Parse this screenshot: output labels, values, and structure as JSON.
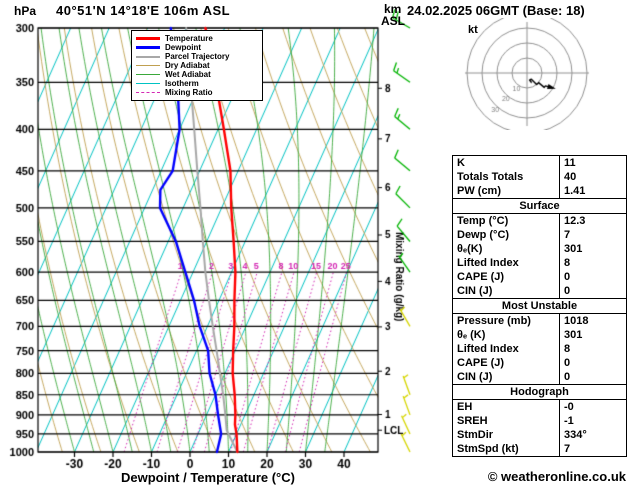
{
  "header": {
    "pressure_unit": "hPa",
    "station_title": "40°51'N 14°18'E 106m ASL",
    "datetime_title": "24.02.2025 06GMT (Base: 18)",
    "height_axis_label_km": "km",
    "height_axis_label_asl": "ASL"
  },
  "footer": {
    "xaxis_label": "Dewpoint / Temperature (°C)",
    "copyright": "© weatheronline.co.uk"
  },
  "legend": {
    "items": [
      {
        "label": "Temperature",
        "color": "#ff0000",
        "width": 3,
        "dash": false
      },
      {
        "label": "Dewpoint",
        "color": "#0000ff",
        "width": 3,
        "dash": false
      },
      {
        "label": "Parcel Trajectory",
        "color": "#a8a8a8",
        "width": 2,
        "dash": false
      },
      {
        "label": "Dry Adiabat",
        "color": "#c0a050",
        "width": 1,
        "dash": false
      },
      {
        "label": "Wet Adiabat",
        "color": "#3aa83a",
        "width": 1,
        "dash": false
      },
      {
        "label": "Isotherm",
        "color": "#00c3c3",
        "width": 1,
        "dash": false
      },
      {
        "label": "Mixing Ratio",
        "color": "#d428b4",
        "width": 1,
        "dash": true
      }
    ]
  },
  "hodograph": {
    "unit_label": "kt",
    "ring_step_kt": 10,
    "ring_labels": [
      10,
      20,
      30
    ],
    "trace_uv": [
      [
        3.1,
        -6.3
      ],
      [
        3.0,
        -6.3
      ],
      [
        1.7,
        -4.7
      ],
      [
        1.7,
        -4.7
      ],
      [
        2.5,
        -4.3
      ],
      [
        2.9,
        -4.1
      ],
      [
        6.4,
        -7.7
      ],
      [
        7.1,
        -7.1
      ],
      [
        7.7,
        -6.4
      ],
      [
        11.5,
        -9.6
      ],
      [
        12.3,
        -8.6
      ],
      [
        17.3,
        -10.0
      ]
    ]
  },
  "panel": {
    "sections": [
      {
        "rows": [
          [
            "K",
            "11"
          ],
          [
            "Totals Totals",
            "40"
          ],
          [
            "PW (cm)",
            "1.41"
          ]
        ]
      },
      {
        "title": "Surface",
        "rows": [
          [
            "Temp (°C)",
            "12.3"
          ],
          [
            "Dewp (°C)",
            "7"
          ],
          [
            "θₑ(K)",
            "301"
          ],
          [
            "Lifted Index",
            "8"
          ],
          [
            "CAPE (J)",
            "0"
          ],
          [
            "CIN (J)",
            "0"
          ]
        ]
      },
      {
        "title": "Most Unstable",
        "rows": [
          [
            "Pressure (mb)",
            "1018"
          ],
          [
            "θₑ (K)",
            "301"
          ],
          [
            "Lifted Index",
            "8"
          ],
          [
            "CAPE (J)",
            "0"
          ],
          [
            "CIN (J)",
            "0"
          ]
        ]
      },
      {
        "title": "Hodograph",
        "rows": [
          [
            "EH",
            "-0"
          ],
          [
            "SREH",
            "-1"
          ],
          [
            "StmDir",
            "334°"
          ],
          [
            "StmSpd (kt)",
            "7"
          ]
        ]
      }
    ]
  },
  "chart_data": {
    "type": "line",
    "subtype": "skewt_log_p_sounding",
    "pressure_ticks": [
      300,
      350,
      400,
      450,
      500,
      550,
      600,
      650,
      700,
      750,
      800,
      850,
      900,
      950,
      1000
    ],
    "temp_ticks": [
      -30,
      -20,
      -10,
      0,
      10,
      20,
      30,
      40
    ],
    "isotherm_step_c": 10,
    "dry_adiabat_step_k": 10,
    "wet_adiabat_start_temps_c": [
      -30,
      -25,
      -20,
      -15,
      -10,
      -5,
      0,
      5,
      10,
      15,
      20,
      25,
      30,
      35
    ],
    "mixing_ratio_lines_gkg": [
      1,
      2,
      3,
      4,
      5,
      8,
      10,
      15,
      20,
      25
    ],
    "mixing_ratio_axis_label": "Mixing Ratio (g/kg)",
    "km_ticks": [
      {
        "km": 1,
        "p": 899
      },
      {
        "km": 2,
        "p": 795
      },
      {
        "km": 3,
        "p": 701
      },
      {
        "km": 4,
        "p": 616
      },
      {
        "km": 5,
        "p": 540
      },
      {
        "km": 6,
        "p": 472
      },
      {
        "km": 7,
        "p": 411
      },
      {
        "km": 8,
        "p": 356
      }
    ],
    "lcl": {
      "label": "LCL",
      "p": 940
    },
    "temperature_profile": [
      [
        1000,
        12.3
      ],
      [
        950,
        10
      ],
      [
        925,
        8.5
      ],
      [
        900,
        7.5
      ],
      [
        850,
        5
      ],
      [
        800,
        2
      ],
      [
        750,
        -0.5
      ],
      [
        700,
        -3
      ],
      [
        650,
        -6
      ],
      [
        600,
        -9
      ],
      [
        550,
        -13
      ],
      [
        500,
        -17.5
      ],
      [
        450,
        -22
      ],
      [
        400,
        -28.5
      ],
      [
        350,
        -36
      ],
      [
        300,
        -45
      ]
    ],
    "dewpoint_profile": [
      [
        1000,
        7
      ],
      [
        950,
        6
      ],
      [
        900,
        3
      ],
      [
        850,
        0
      ],
      [
        800,
        -4
      ],
      [
        750,
        -7
      ],
      [
        700,
        -12
      ],
      [
        650,
        -16.5
      ],
      [
        600,
        -22
      ],
      [
        550,
        -28
      ],
      [
        500,
        -36
      ],
      [
        475,
        -38
      ],
      [
        450,
        -37
      ],
      [
        400,
        -40
      ],
      [
        350,
        -46
      ],
      [
        300,
        -54
      ]
    ],
    "parcel_profile": [
      [
        1000,
        12.3
      ],
      [
        940,
        7
      ],
      [
        900,
        4.9
      ],
      [
        850,
        2
      ],
      [
        800,
        -1.3
      ],
      [
        750,
        -4.8
      ],
      [
        700,
        -8.6
      ],
      [
        650,
        -12.6
      ],
      [
        600,
        -16.8
      ],
      [
        550,
        -21
      ],
      [
        500,
        -25.5
      ],
      [
        450,
        -30.6
      ],
      [
        400,
        -36.2
      ],
      [
        350,
        -42.6
      ],
      [
        300,
        -50
      ]
    ],
    "winds": [
      {
        "p": 300,
        "dir": 300,
        "spd": 20
      },
      {
        "p": 350,
        "dir": 305,
        "spd": 15
      },
      {
        "p": 400,
        "dir": 310,
        "spd": 15
      },
      {
        "p": 450,
        "dir": 310,
        "spd": 10
      },
      {
        "p": 500,
        "dir": 315,
        "spd": 10
      },
      {
        "p": 550,
        "dir": 320,
        "spd": 10
      },
      {
        "p": 600,
        "dir": 325,
        "spd": 5
      },
      {
        "p": 700,
        "dir": 330,
        "spd": 5
      },
      {
        "p": 850,
        "dir": 340,
        "spd": 5
      },
      {
        "p": 900,
        "dir": 340,
        "spd": 5
      },
      {
        "p": 950,
        "dir": 335,
        "spd": 7
      },
      {
        "p": 1000,
        "dir": 334,
        "spd": 7
      }
    ],
    "colors": {
      "temperature": "#ff0000",
      "dewpoint": "#0000ff",
      "parcel": "#a8a8a8",
      "dry_adiabat": "#c0a050",
      "wet_adiabat": "#3aa83a",
      "isotherm": "#00c3c3",
      "mixing_ratio": "#d428b4",
      "wind_barb_upper": "#00b400",
      "wind_barb_lower": "#d6d600",
      "grid": "#000000"
    }
  }
}
